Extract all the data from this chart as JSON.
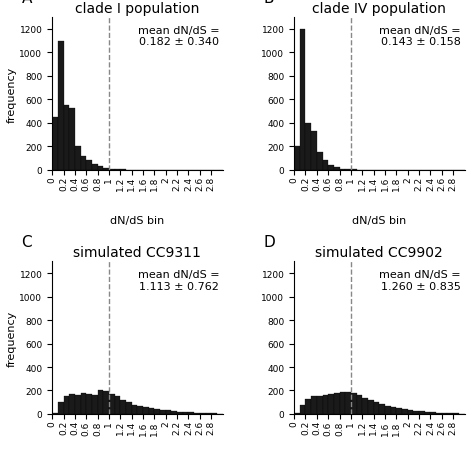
{
  "panels": [
    {
      "label": "A",
      "title": "clade I population",
      "mean_text": "mean dN/dS =\n0.182 ± 0.340",
      "bar_heights": [
        450,
        1100,
        550,
        530,
        200,
        120,
        80,
        50,
        30,
        15,
        10,
        5,
        3,
        2,
        2,
        1,
        0,
        0,
        0,
        0,
        0,
        0,
        0,
        0,
        0,
        0,
        0,
        0,
        0,
        0
      ],
      "dashed_x": 1.0,
      "xlim": [
        0.0,
        3.0
      ],
      "ylim": [
        0,
        1300
      ]
    },
    {
      "label": "B",
      "title": "clade IV population",
      "mean_text": "mean dN/dS =\n0.143 ± 0.158",
      "bar_heights": [
        200,
        1200,
        400,
        330,
        150,
        80,
        40,
        20,
        10,
        5,
        3,
        2,
        1,
        1,
        0,
        0,
        0,
        0,
        0,
        0,
        0,
        0,
        0,
        0,
        0,
        0,
        0,
        0,
        0,
        0
      ],
      "dashed_x": 1.0,
      "xlim": [
        0.0,
        3.0
      ],
      "ylim": [
        0,
        1300
      ]
    },
    {
      "label": "C",
      "title": "simulated CC9311",
      "mean_text": "mean dN/dS =\n1.113 ± 0.762",
      "bar_heights": [
        5,
        100,
        150,
        170,
        160,
        175,
        170,
        165,
        200,
        195,
        170,
        150,
        120,
        100,
        80,
        70,
        60,
        50,
        40,
        35,
        30,
        25,
        20,
        18,
        15,
        12,
        10,
        8,
        5,
        3
      ],
      "dashed_x": 1.0,
      "xlim": [
        0.0,
        3.0
      ],
      "ylim": [
        0,
        1300
      ]
    },
    {
      "label": "D",
      "title": "simulated CC9902",
      "mean_text": "mean dN/dS =\n1.260 ± 0.835",
      "bar_heights": [
        5,
        80,
        130,
        150,
        155,
        165,
        170,
        175,
        185,
        190,
        175,
        160,
        140,
        120,
        100,
        85,
        70,
        60,
        50,
        42,
        35,
        28,
        22,
        18,
        14,
        11,
        8,
        6,
        4,
        2
      ],
      "dashed_x": 1.0,
      "xlim": [
        0.0,
        3.0
      ],
      "ylim": [
        0,
        1300
      ]
    }
  ],
  "bar_color": "#1a1a1a",
  "bar_edge_color": "#000000",
  "dashed_color": "#888888",
  "bin_width": 0.1,
  "bin_start": 0.0,
  "yticks": [
    0,
    200,
    400,
    600,
    800,
    1000,
    1200
  ],
  "xtick_values": [
    0.0,
    0.2,
    0.4,
    0.6,
    0.8,
    1.0,
    1.2,
    1.4,
    1.6,
    1.8,
    2.0,
    2.2,
    2.4,
    2.6,
    2.8
  ],
  "xtick_labels": [
    "0",
    "0.2",
    "0.4",
    "0.6",
    "0.8",
    "1",
    "1.2",
    "1.4",
    "1.6",
    "1.8",
    "2",
    "2.2",
    "2.4",
    "2.6",
    "2.8"
  ],
  "xlabel": "dN/dS bin",
  "ylabel": "frequency",
  "background_color": "#ffffff",
  "text_color": "#000000",
  "annotation_fontsize": 8,
  "label_fontsize": 11,
  "title_fontsize": 10,
  "tick_fontsize": 6.5,
  "ylabel_fontsize": 8,
  "xlabel_fontsize": 8
}
